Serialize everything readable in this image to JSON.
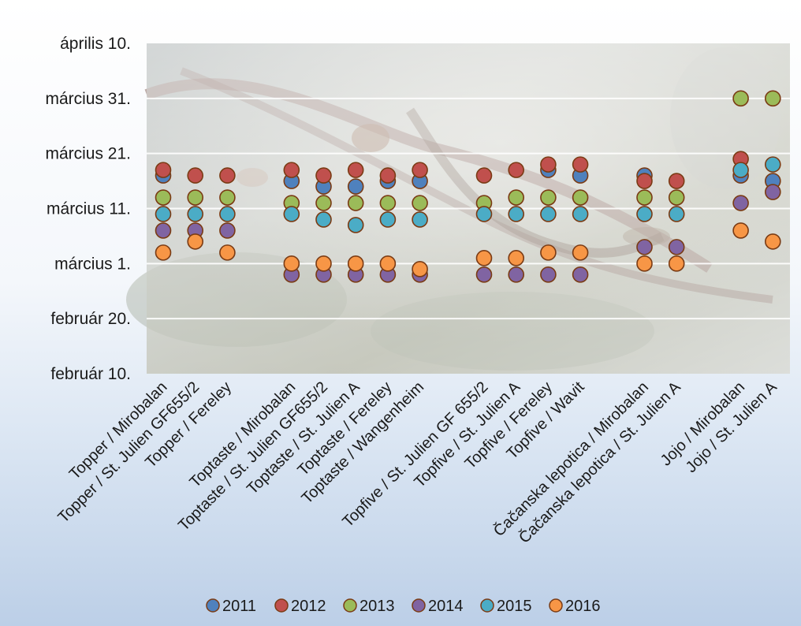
{
  "chart_data": {
    "type": "scatter",
    "title": "",
    "xlabel": "",
    "ylabel": "",
    "y_is_date": true,
    "ylim": [
      "02-10",
      "04-10"
    ],
    "yticks": [
      {
        "date": "04-10",
        "label": "április 10."
      },
      {
        "date": "03-31",
        "label": "március 31."
      },
      {
        "date": "03-21",
        "label": "március 21."
      },
      {
        "date": "03-11",
        "label": "március 11."
      },
      {
        "date": "03-01",
        "label": "március 1."
      },
      {
        "date": "02-20",
        "label": "február 20."
      },
      {
        "date": "02-10",
        "label": "február 10."
      }
    ],
    "grid": true,
    "legend_position": "bottom",
    "categories": [
      "Topper / Mirobalan",
      "Topper / St. Julien GF655/2",
      "Topper / Fereley",
      "",
      "Toptaste / Mirobalan",
      "Toptaste / St. Julien GF655/2",
      "Toptaste / St. Julien A",
      "Toptaste / Fereley",
      "Toptaste / Wangenheim",
      "",
      "Topfive / St. Julien GF 655/2",
      "Topfive / St. Julien A",
      "Topfive / Fereley",
      "Topfive / Wavit",
      "",
      "Čačanska lepotica / Mirobalan",
      "Čačanska lepotica / St. Julien A",
      "",
      "Jojo / Mirobalan",
      "Jojo / St. Julien A"
    ],
    "series": [
      {
        "name": "2011",
        "color": "#4f81bd",
        "values": [
          "03-17",
          null,
          null,
          null,
          "03-16",
          "03-15",
          "03-15",
          "03-16",
          "03-16",
          null,
          null,
          null,
          "03-18",
          "03-17",
          null,
          "03-17",
          null,
          null,
          "03-17",
          "03-16"
        ]
      },
      {
        "name": "2012",
        "color": "#c0504d",
        "values": [
          "03-18",
          "03-17",
          "03-17",
          null,
          "03-18",
          "03-17",
          "03-18",
          "03-17",
          "03-18",
          null,
          "03-17",
          "03-18",
          "03-19",
          "03-19",
          null,
          "03-16",
          "03-16",
          null,
          "03-20",
          null
        ]
      },
      {
        "name": "2013",
        "color": "#9bbb59",
        "values": [
          "03-13",
          "03-13",
          "03-13",
          null,
          "03-12",
          "03-12",
          "03-12",
          "03-12",
          "03-12",
          null,
          "03-12",
          "03-13",
          "03-13",
          "03-13",
          null,
          "03-13",
          "03-13",
          null,
          "03-31",
          "03-31"
        ]
      },
      {
        "name": "2014",
        "color": "#8064a2",
        "values": [
          "03-07",
          "03-07",
          "03-07",
          null,
          "02-28",
          "02-28",
          "02-28",
          "02-28",
          "02-28",
          null,
          "02-28",
          "02-28",
          "02-28",
          "02-28",
          null,
          "03-04",
          "03-04",
          null,
          "03-12",
          "03-14"
        ]
      },
      {
        "name": "2015",
        "color": "#4bacc6",
        "values": [
          "03-10",
          "03-10",
          "03-10",
          null,
          "03-10",
          "03-09",
          "03-08",
          "03-09",
          "03-09",
          null,
          "03-10",
          "03-10",
          "03-10",
          "03-10",
          null,
          "03-10",
          "03-10",
          null,
          "03-18",
          "03-19"
        ]
      },
      {
        "name": "2016",
        "color": "#f79646",
        "values": [
          "03-03",
          "03-05",
          "03-03",
          null,
          "03-01",
          "03-01",
          "03-01",
          "03-01",
          "02-29",
          null,
          "03-02",
          "03-02",
          "03-03",
          "03-03",
          null,
          "03-01",
          "03-01",
          null,
          "03-07",
          "03-05"
        ]
      }
    ]
  }
}
